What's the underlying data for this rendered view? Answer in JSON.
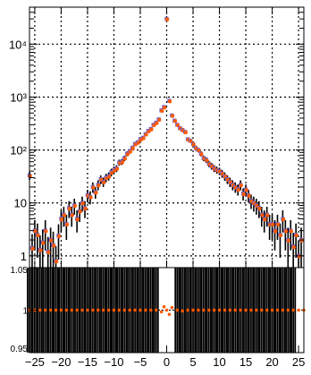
{
  "chart_data": [
    {
      "type": "scatter",
      "panel": "main",
      "xlim": [
        -26,
        26
      ],
      "ylim": [
        0.6,
        50000
      ],
      "yscale": "log",
      "grid": true,
      "title": "",
      "xlabel": "",
      "ylabel": "",
      "y_tick_labels": [
        "1",
        "10",
        "10²",
        "10³",
        "10⁴"
      ],
      "y_tick_values": [
        1,
        10,
        100,
        1000,
        10000
      ],
      "marker_colors": {
        "series_a": "#ff5a00",
        "series_b": "#6b63d9"
      },
      "series": [
        {
          "points": [
            [
              -26,
              33
            ],
            [
              -25.5,
              1.4
            ],
            [
              -25,
              3
            ],
            [
              -24.5,
              2.5
            ],
            [
              -24,
              1.3
            ],
            [
              -23.5,
              1.8
            ],
            [
              -23,
              3
            ],
            [
              -22.5,
              1.2
            ],
            [
              -22,
              2
            ],
            [
              -21.5,
              1.6
            ],
            [
              -21,
              0.8
            ],
            [
              -20.5,
              2.4
            ],
            [
              -20,
              5
            ],
            [
              -19.5,
              6
            ],
            [
              -19,
              4
            ],
            [
              -18.5,
              8
            ],
            [
              -18,
              6
            ],
            [
              -17.5,
              9
            ],
            [
              -17,
              5
            ],
            [
              -16.5,
              7
            ],
            [
              -16,
              10
            ],
            [
              -15.5,
              8
            ],
            [
              -15,
              14
            ],
            [
              -14.5,
              13
            ],
            [
              -14,
              20
            ],
            [
              -13.5,
              16
            ],
            [
              -13,
              22
            ],
            [
              -12.5,
              28
            ],
            [
              -12,
              25
            ],
            [
              -11.5,
              30
            ],
            [
              -11,
              32
            ],
            [
              -10.5,
              38
            ],
            [
              -10,
              42
            ],
            [
              -9.5,
              45
            ],
            [
              -9,
              58
            ],
            [
              -8.5,
              60
            ],
            [
              -8,
              70
            ],
            [
              -7.5,
              85
            ],
            [
              -7,
              95
            ],
            [
              -6.5,
              110
            ],
            [
              -6,
              130
            ],
            [
              -5.5,
              140
            ],
            [
              -5,
              160
            ],
            [
              -4.5,
              170
            ],
            [
              -4,
              200
            ],
            [
              -3.5,
              230
            ],
            [
              -3,
              250
            ],
            [
              -2.5,
              300
            ],
            [
              -2,
              330
            ],
            [
              -1.5,
              380
            ],
            [
              -1,
              560
            ],
            [
              -0.5,
              650
            ],
            [
              0,
              30000
            ],
            [
              0.5,
              850
            ],
            [
              1,
              450
            ],
            [
              1.5,
              360
            ],
            [
              2,
              300
            ],
            [
              2.5,
              260
            ],
            [
              3,
              240
            ],
            [
              3.5,
              220
            ],
            [
              4,
              160
            ],
            [
              4.5,
              150
            ],
            [
              5,
              130
            ],
            [
              5.5,
              110
            ],
            [
              6,
              100
            ],
            [
              6.5,
              85
            ],
            [
              7,
              70
            ],
            [
              7.5,
              65
            ],
            [
              8,
              55
            ],
            [
              8.5,
              50
            ],
            [
              9,
              45
            ],
            [
              9.5,
              42
            ],
            [
              10,
              40
            ],
            [
              10.5,
              36
            ],
            [
              11,
              32
            ],
            [
              11.5,
              28
            ],
            [
              12,
              25
            ],
            [
              12.5,
              22
            ],
            [
              13,
              20
            ],
            [
              13.5,
              18
            ],
            [
              14,
              22
            ],
            [
              14.5,
              15
            ],
            [
              15,
              18
            ],
            [
              15.5,
              14
            ],
            [
              16,
              11
            ],
            [
              16.5,
              10
            ],
            [
              17,
              9
            ],
            [
              17.5,
              8
            ],
            [
              18,
              6
            ],
            [
              18.5,
              5
            ],
            [
              19,
              6
            ],
            [
              19.5,
              4
            ],
            [
              20,
              4
            ],
            [
              20.5,
              3
            ],
            [
              21,
              4
            ],
            [
              21.5,
              2.5
            ],
            [
              22,
              5
            ],
            [
              22.5,
              3
            ],
            [
              23,
              2
            ],
            [
              23.5,
              3
            ],
            [
              24,
              1.5
            ],
            [
              24.5,
              2.5
            ],
            [
              25,
              1
            ],
            [
              25.5,
              2
            ]
          ]
        }
      ]
    },
    {
      "type": "scatter",
      "panel": "ratio",
      "xlim": [
        -26,
        26
      ],
      "ylim": [
        0.95,
        1.05
      ],
      "grid": false,
      "x_tick_labels": [
        "−25",
        "−20",
        "−15",
        "−10",
        "−5",
        "0",
        "5",
        "10",
        "15",
        "20",
        "25"
      ],
      "x_tick_values": [
        -25,
        -20,
        -15,
        -10,
        -5,
        0,
        5,
        10,
        15,
        20,
        25
      ],
      "y_tick_labels": [
        "0.95",
        "1",
        "1.05"
      ],
      "y_tick_values": [
        0.95,
        1,
        1.05
      ],
      "reference_line": 1,
      "marker_color": "#ff5a00",
      "values": [
        [
          -26,
          1
        ],
        [
          -25,
          1
        ],
        [
          -24,
          1
        ],
        [
          -23,
          1
        ],
        [
          -22,
          1
        ],
        [
          -21,
          1
        ],
        [
          -20,
          1
        ],
        [
          -19,
          1
        ],
        [
          -18,
          1
        ],
        [
          -17,
          1
        ],
        [
          -16,
          1
        ],
        [
          -15,
          1
        ],
        [
          -14,
          1
        ],
        [
          -13,
          1
        ],
        [
          -12,
          1
        ],
        [
          -11,
          1
        ],
        [
          -10,
          1
        ],
        [
          -9,
          1
        ],
        [
          -8,
          1
        ],
        [
          -7,
          1
        ],
        [
          -6,
          1
        ],
        [
          -5,
          1
        ],
        [
          -4,
          1
        ],
        [
          -3,
          1
        ],
        [
          -2,
          1
        ],
        [
          -1,
          0.998
        ],
        [
          -0.5,
          1.004
        ],
        [
          0,
          1.0
        ],
        [
          0.5,
          0.995
        ],
        [
          1,
          1.003
        ],
        [
          2,
          1
        ],
        [
          3,
          0.999
        ],
        [
          4,
          1
        ],
        [
          5,
          1
        ],
        [
          6,
          1
        ],
        [
          7,
          1
        ],
        [
          8,
          1
        ],
        [
          9,
          1
        ],
        [
          10,
          1
        ],
        [
          11,
          1
        ],
        [
          12,
          1
        ],
        [
          13,
          1
        ],
        [
          14,
          1
        ],
        [
          15,
          1
        ],
        [
          16,
          1
        ],
        [
          17,
          1
        ],
        [
          18,
          1
        ],
        [
          19,
          1
        ],
        [
          20,
          1
        ],
        [
          21,
          1
        ],
        [
          22,
          1
        ],
        [
          23,
          1
        ],
        [
          24,
          1
        ],
        [
          25,
          1
        ],
        [
          26,
          1
        ]
      ]
    }
  ]
}
